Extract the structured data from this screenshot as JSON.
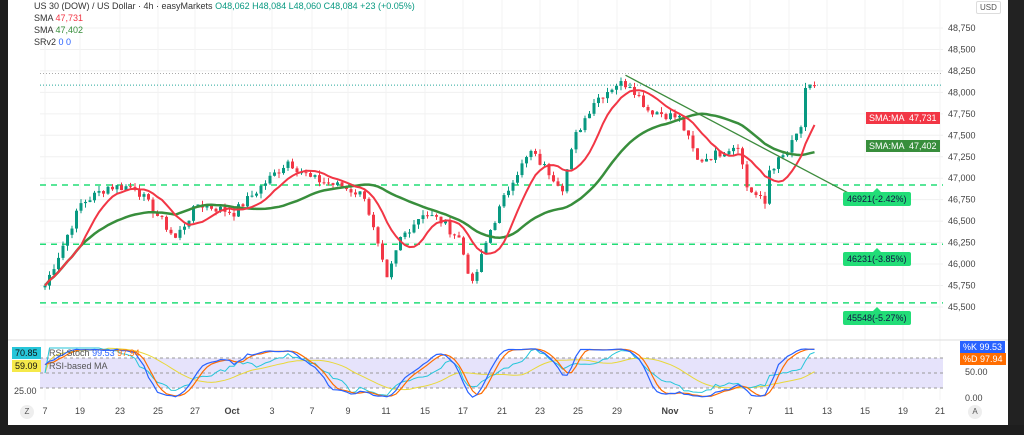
{
  "header": {
    "title": "US 30 (DOW) / US Dollar · 4h · easyMarkets",
    "ohlc": "O48,062 H48,084 L48,060 C48,084 +23 (+0.05%)"
  },
  "indicators": [
    {
      "name": "SMA",
      "value": "47,731",
      "color": "#f23645"
    },
    {
      "name": "SMA",
      "value": "47,402",
      "color": "#388e3c"
    },
    {
      "name": "SRv2",
      "value": "0 0",
      "color": "#2962ff"
    }
  ],
  "currency": "USD",
  "price_tags": [
    {
      "label": "SMA:MA",
      "value": "47,731",
      "color": "#f23645"
    },
    {
      "label": "SMA:MA",
      "value": "47,402",
      "color": "#388e3c"
    }
  ],
  "levels": [
    {
      "price": 46921,
      "label": "46921(-2.42%)"
    },
    {
      "price": 46231,
      "label": "46231(-3.85%)"
    },
    {
      "price": 45548,
      "label": "45548(-5.27%)"
    }
  ],
  "oscillator": {
    "rsi_label": "RSI",
    "rsi_value": "70.85",
    "rsi_ma_label": "RSI-based MA",
    "rsi_ma_value": "59.09",
    "stoch_label": "Stoch",
    "stoch_k": "99.53",
    "stoch_d": "97.94",
    "k_tag": "%K",
    "d_tag": "%D",
    "axis": [
      "50.00",
      "0.00"
    ],
    "left_axis": "25.00"
  },
  "buttons": {
    "log": "Z",
    "auto": "A"
  },
  "chart_data": {
    "type": "candlestick",
    "title": "US 30 (DOW) / US Dollar · 4h",
    "y_ticks": [
      48750,
      48500,
      48250,
      48000,
      47750,
      47500,
      47250,
      47000,
      46750,
      46500,
      46250,
      46000,
      45750,
      45500
    ],
    "ylim": [
      45300,
      48950
    ],
    "x_ticks": [
      "7",
      "19",
      "23",
      "25",
      "27",
      "Oct",
      "3",
      "7",
      "9",
      "11",
      "15",
      "17",
      "21",
      "23",
      "25",
      "29",
      "Nov",
      "5",
      "7",
      "11",
      "13",
      "15",
      "19",
      "21"
    ],
    "approx_close_path": [
      [
        0,
        45750
      ],
      [
        3,
        46100
      ],
      [
        8,
        46700
      ],
      [
        14,
        46900
      ],
      [
        20,
        46900
      ],
      [
        23,
        46700
      ],
      [
        29,
        46300
      ],
      [
        34,
        46700
      ],
      [
        42,
        46600
      ],
      [
        50,
        47000
      ],
      [
        54,
        47200
      ],
      [
        59,
        47000
      ],
      [
        66,
        46900
      ],
      [
        71,
        46800
      ],
      [
        76,
        45800
      ],
      [
        79,
        46300
      ],
      [
        84,
        46600
      ],
      [
        88,
        46500
      ],
      [
        92,
        46300
      ],
      [
        95,
        45750
      ],
      [
        99,
        46400
      ],
      [
        104,
        47000
      ],
      [
        108,
        47300
      ],
      [
        115,
        46900
      ],
      [
        118,
        47500
      ],
      [
        122,
        47900
      ],
      [
        127,
        48100
      ],
      [
        130,
        48100
      ],
      [
        134,
        47800
      ],
      [
        141,
        47700
      ],
      [
        145,
        47200
      ],
      [
        150,
        47300
      ],
      [
        154,
        47400
      ],
      [
        156,
        46900
      ],
      [
        160,
        46700
      ],
      [
        161,
        47100
      ],
      [
        165,
        47300
      ],
      [
        168,
        47600
      ],
      [
        169,
        48000
      ],
      [
        171,
        48084
      ]
    ],
    "sma_fast_last": 47731,
    "sma_slow_last": 47402
  }
}
